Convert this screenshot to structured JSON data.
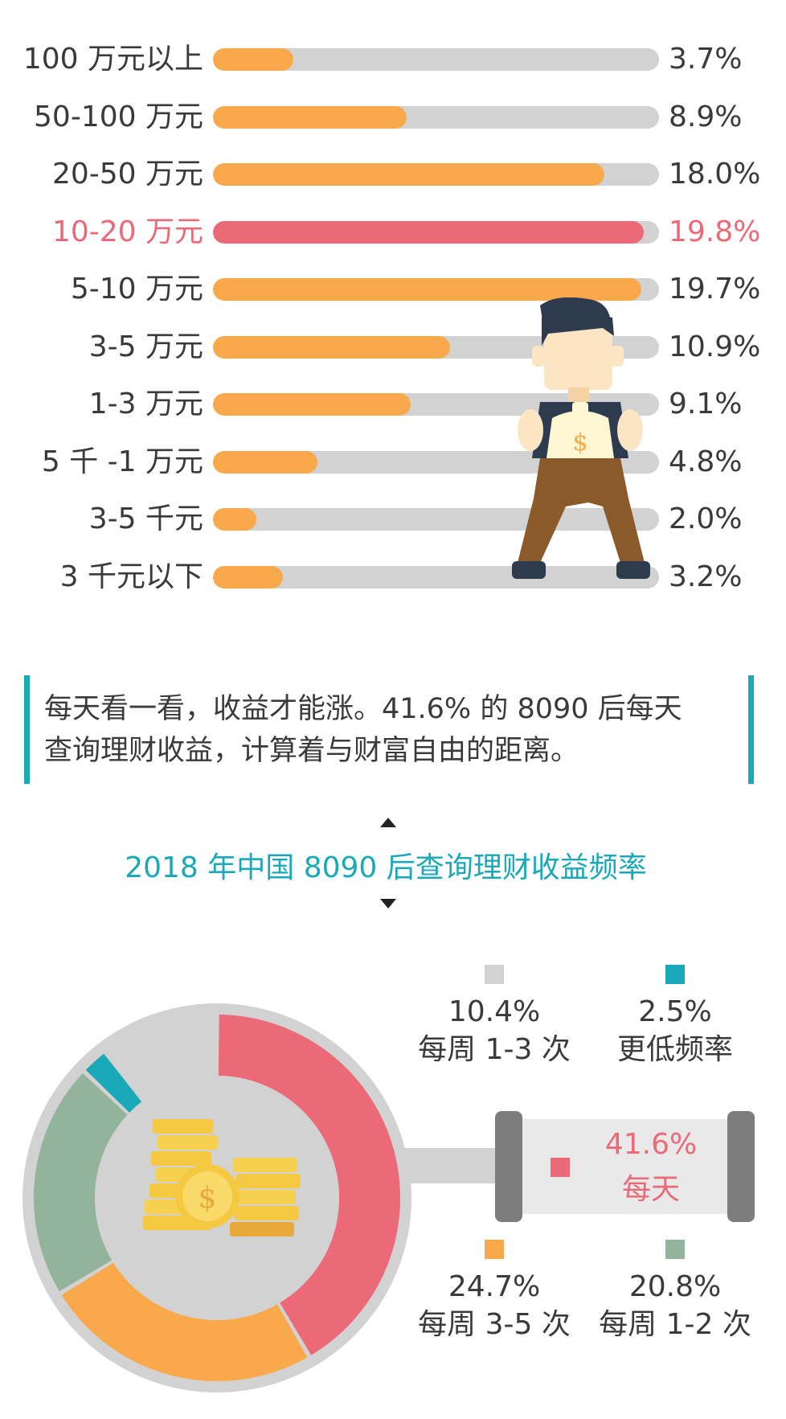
{
  "colors": {
    "orange": "#f9a94b",
    "pink": "#ec6a78",
    "gray": "#d2d2d2",
    "teal": "#1aa9b8",
    "sage": "#93b39a",
    "text": "#3a3a3a"
  },
  "chart_data": [
    {
      "type": "bar",
      "orientation": "horizontal",
      "title": "",
      "xlim": [
        0,
        20.5
      ],
      "categories": [
        "100 万元以上",
        "50-100 万元",
        "20-50 万元",
        "10-20 万元",
        "5-10 万元",
        "3-5 万元",
        "1-3 万元",
        "5 千 -1 万元",
        "3-5 千元",
        "3 千元以下"
      ],
      "values": [
        3.7,
        8.9,
        18.0,
        19.8,
        19.7,
        10.9,
        9.1,
        4.8,
        2.0,
        3.2
      ],
      "value_labels": [
        "3.7%",
        "8.9%",
        "18.0%",
        "19.8%",
        "19.7%",
        "10.9%",
        "9.1%",
        "4.8%",
        "2.0%",
        "3.2%"
      ],
      "highlight": "10-20 万元",
      "grid": false
    },
    {
      "type": "pie",
      "title": "2018 年中国 8090 后查询理财收益频率",
      "slices": [
        {
          "label": "每天",
          "value": 41.6,
          "display": "41.6%",
          "color": "#ec6a78"
        },
        {
          "label": "每周 3-5 次",
          "value": 24.7,
          "display": "24.7%",
          "color": "#f9a94b"
        },
        {
          "label": "每周 1-2 次",
          "value": 20.8,
          "display": "20.8%",
          "color": "#93b39a"
        },
        {
          "label": "更低频率",
          "value": 2.5,
          "display": "2.5%",
          "color": "#1aa9b8"
        },
        {
          "label": "每周 1-3 次",
          "value": 10.4,
          "display": "10.4%",
          "color": "#d2d2d2"
        }
      ],
      "legend_placement": "right"
    }
  ],
  "caption": {
    "line1": "每天看一看，收益才能涨。41.6% 的 8090 后每天",
    "line2": "查询理财收益，计算着与财富自由的距离。"
  },
  "icons": {
    "figure": "man-holding-money-bag-icon",
    "coins": "coin-stack-icon"
  }
}
